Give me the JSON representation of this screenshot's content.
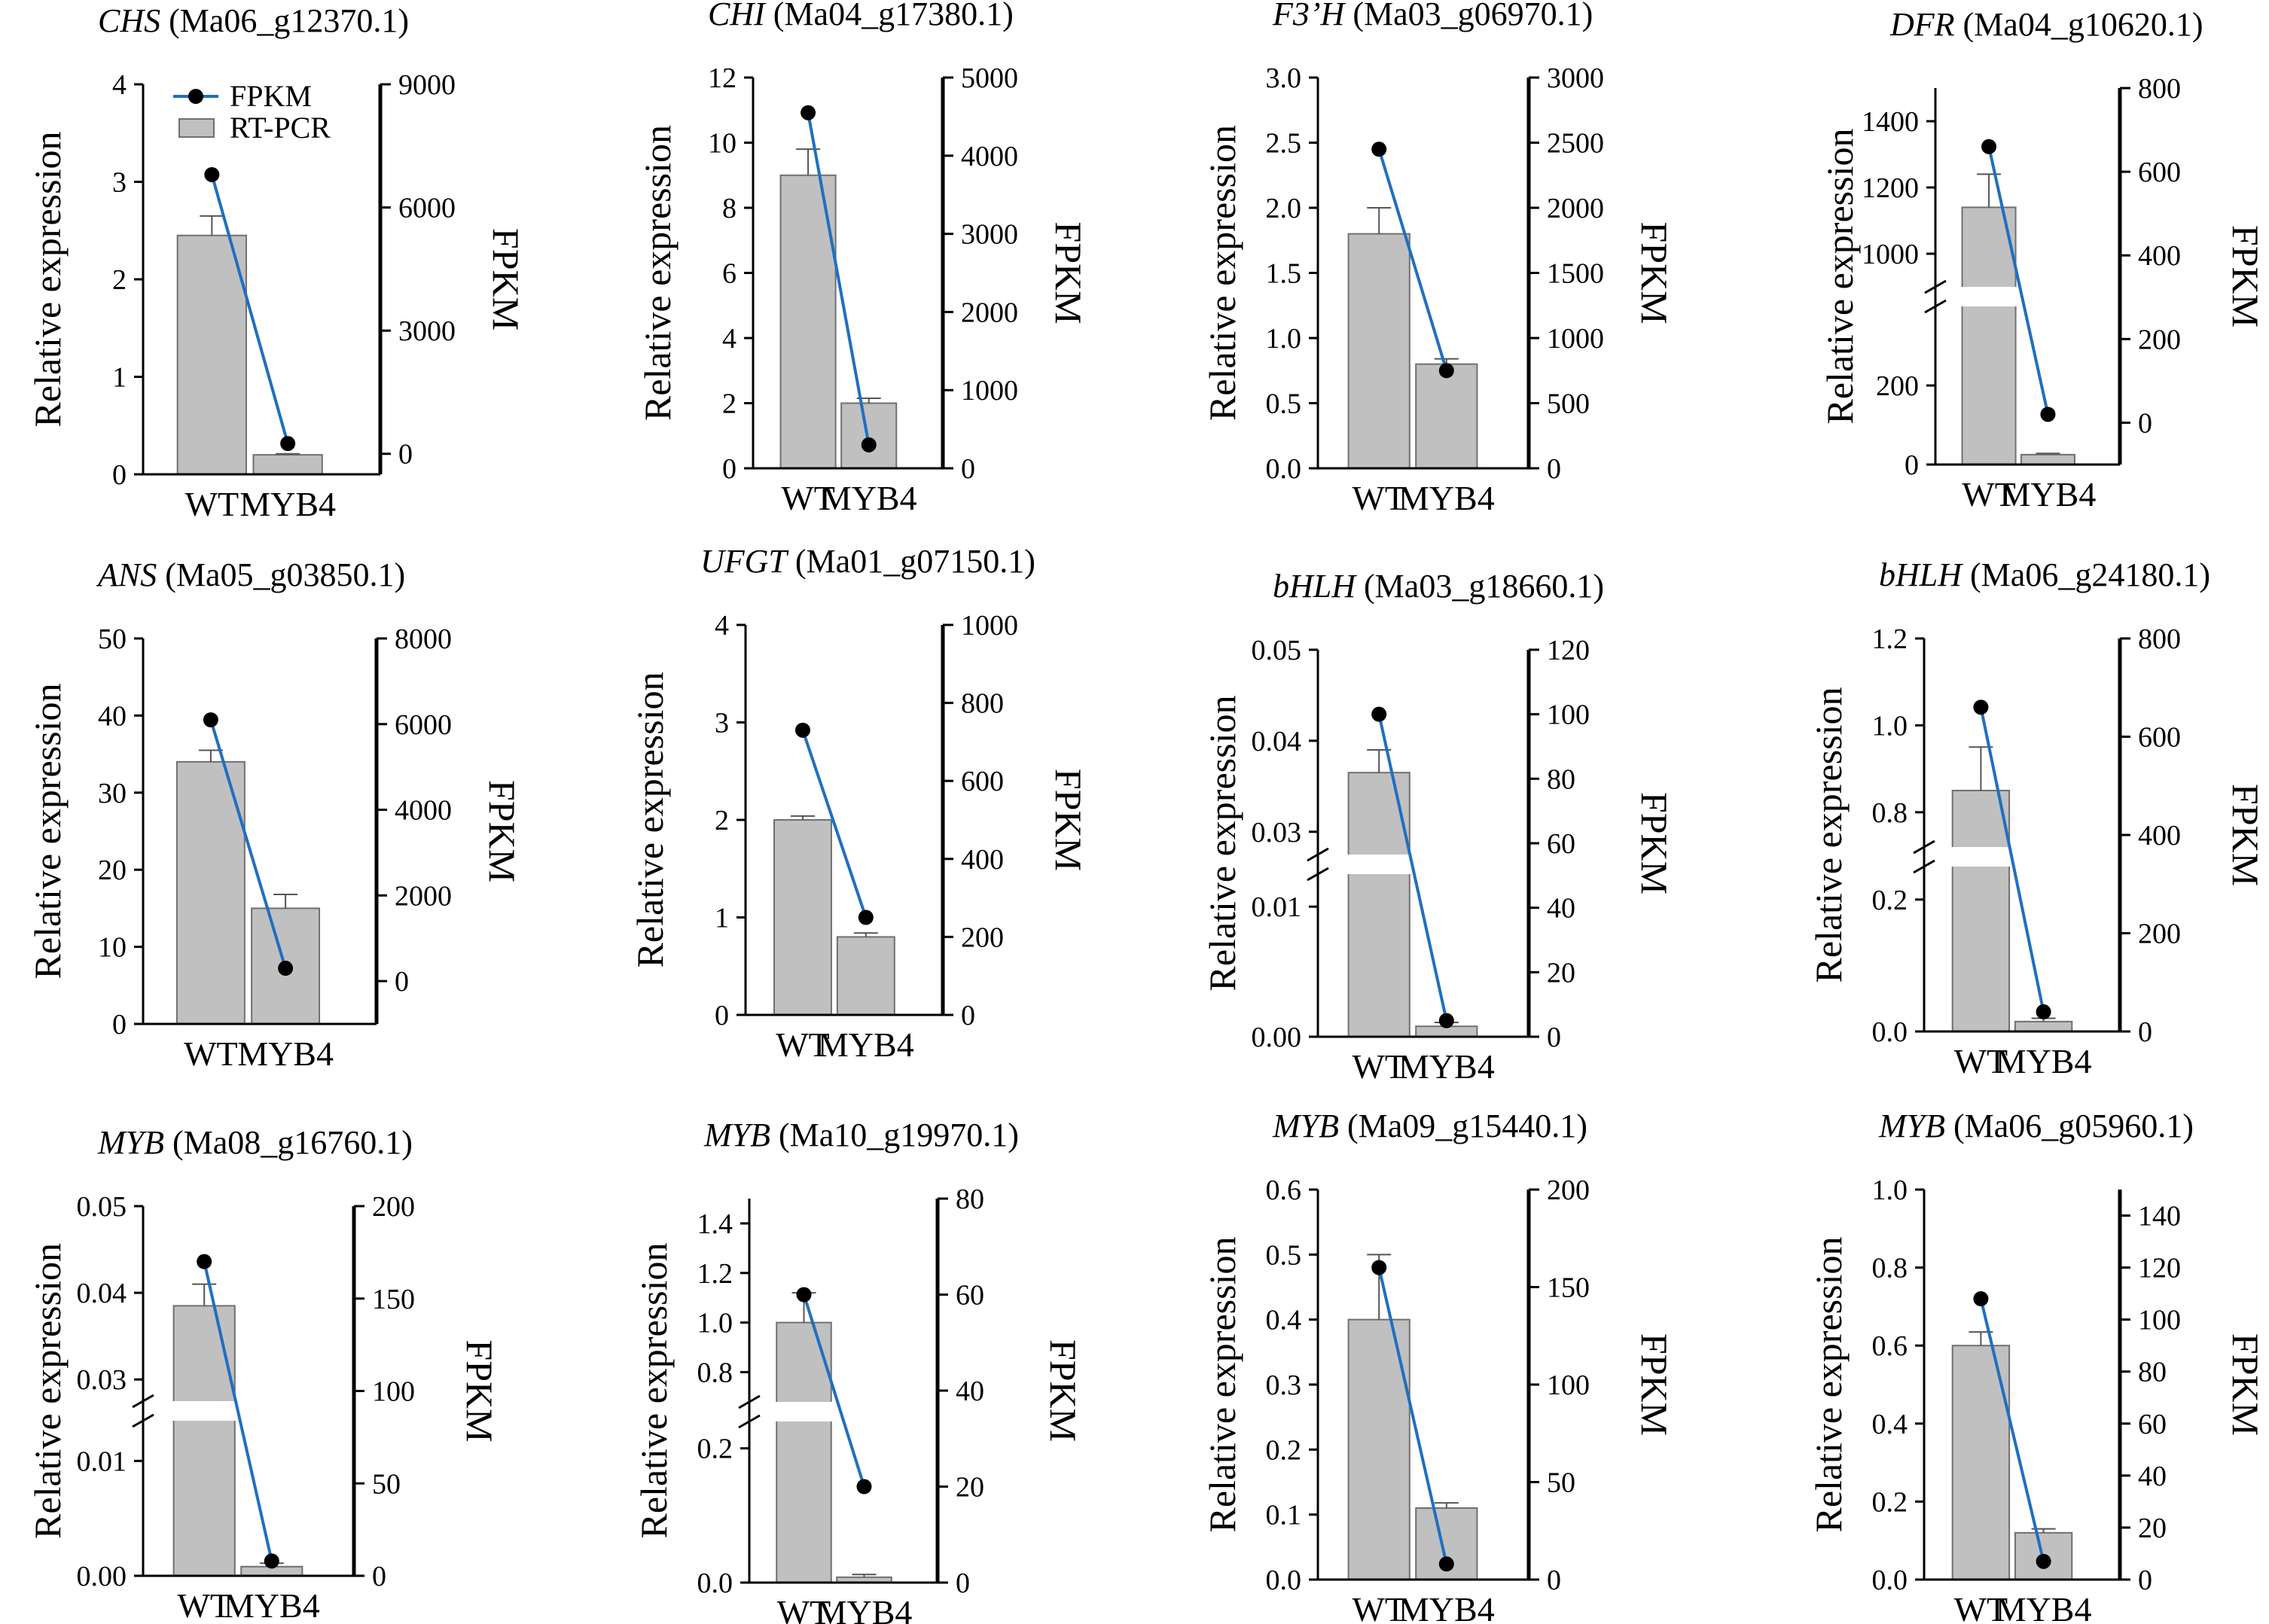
{
  "figure": {
    "legend": {
      "fpkm": "FPKM",
      "rtpcr": "RT-PCR"
    },
    "colors": {
      "bar": "#c0c0c0",
      "bar_edge": "#707070",
      "line": "#1f6fc0",
      "point": "#000000",
      "axis": "#000000"
    }
  },
  "chart_data": [
    {
      "type": "bar",
      "gene": "CHS",
      "id": " (Ma06_g12370.1)",
      "categories": [
        "WT",
        "MYB4"
      ],
      "values": [
        2.45,
        0.2
      ],
      "errors": [
        0.2,
        0.01
      ],
      "fpkm": [
        6800,
        250
      ],
      "ylabel": "Relative expression",
      "y2label": "FPKM",
      "ylim": [
        0,
        4
      ],
      "yticks": [
        0,
        1,
        2,
        3,
        4
      ],
      "ytick_labels": [
        "0",
        "1",
        "2",
        "3",
        "4"
      ],
      "y2lim": [
        -500,
        9000
      ],
      "y2ticks": [
        0,
        3000,
        6000,
        9000
      ],
      "y2tick_labels": [
        "0",
        "3000",
        "6000",
        "9000"
      ],
      "legend": true
    },
    {
      "type": "bar",
      "gene": "CHI",
      "id": " (Ma04_g17380.1)",
      "categories": [
        "WT",
        "MYB4"
      ],
      "values": [
        9,
        2
      ],
      "errors": [
        0.8,
        0.15
      ],
      "fpkm": [
        4550,
        300
      ],
      "ylabel": "Relative expression",
      "y2label": "FPKM",
      "ylim": [
        0,
        12
      ],
      "yticks": [
        0,
        2,
        4,
        6,
        8,
        10,
        12
      ],
      "ytick_labels": [
        "0",
        "2",
        "4",
        "6",
        "8",
        "10",
        "12"
      ],
      "y2lim": [
        0,
        5000
      ],
      "y2ticks": [
        0,
        1000,
        2000,
        3000,
        4000,
        5000
      ],
      "y2tick_labels": [
        "0",
        "1000",
        "2000",
        "3000",
        "4000",
        "5000"
      ]
    },
    {
      "type": "bar",
      "gene": "F3’H",
      "id": " (Ma03_g06970.1)",
      "categories": [
        "WT",
        "MYB4"
      ],
      "values": [
        1.8,
        0.8
      ],
      "errors": [
        0.2,
        0.04
      ],
      "fpkm": [
        2450,
        750
      ],
      "ylabel": "Relative expression",
      "y2label": "FPKM",
      "ylim": [
        0,
        3
      ],
      "yticks": [
        0,
        0.5,
        1,
        1.5,
        2,
        2.5,
        3
      ],
      "ytick_labels": [
        "0.0",
        "0.5",
        "1.0",
        "1.5",
        "2.0",
        "2.5",
        "3.0"
      ],
      "y2lim": [
        0,
        3000
      ],
      "y2ticks": [
        0,
        500,
        1000,
        1500,
        2000,
        2500,
        3000
      ],
      "y2tick_labels": [
        "0",
        "500",
        "1000",
        "1500",
        "2000",
        "2500",
        "3000"
      ]
    },
    {
      "type": "bar",
      "gene": "DFR",
      "id": " (Ma04_g10620.1)",
      "categories": [
        "WT",
        "MYB4"
      ],
      "values": [
        1140,
        25
      ],
      "errors": [
        100,
        3
      ],
      "fpkm": [
        660,
        20
      ],
      "ylabel": "Relative expression",
      "y2label": "FPKM",
      "ylim": [
        0,
        1500
      ],
      "yticks": [
        0,
        200,
        1000,
        1200,
        1400
      ],
      "ytick_labels": [
        "0",
        "200",
        "1000",
        "1200",
        "1400"
      ],
      "y2lim": [
        -100,
        800
      ],
      "y2ticks": [
        0,
        200,
        400,
        600,
        800
      ],
      "y2tick_labels": [
        "0",
        "200",
        "400",
        "600",
        "800"
      ],
      "break": {
        "low": [
          0,
          400
        ],
        "high": [
          900,
          1500
        ]
      }
    },
    {
      "type": "bar",
      "gene": "ANS",
      "id": " (Ma05_g03850.1)",
      "categories": [
        "WT",
        "MYB4"
      ],
      "values": [
        34,
        15
      ],
      "errors": [
        1.5,
        1.8
      ],
      "fpkm": [
        6100,
        300
      ],
      "ylabel": "Relative expression",
      "y2label": "FPKM",
      "ylim": [
        0,
        50
      ],
      "yticks": [
        0,
        10,
        20,
        30,
        40,
        50
      ],
      "ytick_labels": [
        "0",
        "10",
        "20",
        "30",
        "40",
        "50"
      ],
      "y2lim": [
        -1000,
        8000
      ],
      "y2ticks": [
        0,
        2000,
        4000,
        6000,
        8000
      ],
      "y2tick_labels": [
        "0",
        "2000",
        "4000",
        "6000",
        "8000"
      ]
    },
    {
      "type": "bar",
      "gene": "UFGT",
      "id": " (Ma01_g07150.1)",
      "categories": [
        "WT",
        "MYB4"
      ],
      "values": [
        2,
        0.8
      ],
      "errors": [
        0.04,
        0.04
      ],
      "fpkm": [
        730,
        250
      ],
      "ylabel": "Relative expression",
      "y2label": "FPKM",
      "ylim": [
        0,
        4
      ],
      "yticks": [
        0,
        1,
        2,
        3,
        4
      ],
      "ytick_labels": [
        "0",
        "1",
        "2",
        "3",
        "4"
      ],
      "y2lim": [
        0,
        1000
      ],
      "y2ticks": [
        0,
        200,
        400,
        600,
        800,
        1000
      ],
      "y2tick_labels": [
        "0",
        "200",
        "400",
        "600",
        "800",
        "1000"
      ]
    },
    {
      "type": "bar",
      "gene": "bHLH",
      "id": " (Ma03_g18660.1)",
      "categories": [
        "WT",
        "MYB4"
      ],
      "values": [
        0.0365,
        0.0008
      ],
      "errors": [
        0.0025,
        0.0003
      ],
      "fpkm": [
        100,
        5
      ],
      "ylabel": "Relative expression",
      "y2label": "FPKM",
      "ylim": [
        0,
        0.05
      ],
      "yticks": [
        0,
        0.01,
        0.03,
        0.04,
        0.05
      ],
      "ytick_labels": [
        "0.00",
        "0.01",
        "0.03",
        "0.04",
        "0.05"
      ],
      "y2lim": [
        0,
        120
      ],
      "y2ticks": [
        0,
        20,
        40,
        60,
        80,
        100,
        120
      ],
      "y2tick_labels": [
        "0",
        "20",
        "40",
        "60",
        "80",
        "100",
        "120"
      ],
      "break": {
        "low": [
          0,
          0.0125
        ],
        "high": [
          0.0275,
          0.05
        ]
      }
    },
    {
      "type": "bar",
      "gene": "bHLH",
      "id": " (Ma06_g24180.1)",
      "categories": [
        "WT",
        "MYB4"
      ],
      "values": [
        0.85,
        0.015
      ],
      "errors": [
        0.1,
        0.005
      ],
      "fpkm": [
        660,
        40
      ],
      "ylabel": "Relative expression",
      "y2label": "FPKM",
      "ylim": [
        0,
        1.2
      ],
      "yticks": [
        0,
        0.2,
        0.8,
        1.0,
        1.2
      ],
      "ytick_labels": [
        "0.0",
        "0.2",
        "0.8",
        "1.0",
        "1.2"
      ],
      "y2lim": [
        0,
        800
      ],
      "y2ticks": [
        0,
        200,
        400,
        600,
        800
      ],
      "y2tick_labels": [
        "0",
        "200",
        "400",
        "600",
        "800"
      ],
      "break": {
        "low": [
          0,
          0.25
        ],
        "high": [
          0.72,
          1.2
        ]
      }
    },
    {
      "type": "bar",
      "gene": "MYB",
      "id": " (Ma08_g16760.1)",
      "categories": [
        "WT",
        "MYB4"
      ],
      "values": [
        0.0385,
        0.0008
      ],
      "errors": [
        0.0025,
        0.0003
      ],
      "fpkm": [
        170,
        8
      ],
      "ylabel": "Relative expression",
      "y2label": "FPKM",
      "ylim": [
        0,
        0.05
      ],
      "yticks": [
        0,
        0.01,
        0.03,
        0.04,
        0.05
      ],
      "ytick_labels": [
        "0.00",
        "0.01",
        "0.03",
        "0.04",
        "0.05"
      ],
      "y2lim": [
        0,
        200
      ],
      "y2ticks": [
        0,
        50,
        100,
        150,
        200
      ],
      "y2tick_labels": [
        "0",
        "50",
        "100",
        "150",
        "200"
      ],
      "break": {
        "low": [
          0,
          0.0135
        ],
        "high": [
          0.0275,
          0.05
        ]
      }
    },
    {
      "type": "bar",
      "gene": "MYB",
      "id": " (Ma10_g19970.1)",
      "categories": [
        "WT",
        "MYB4"
      ],
      "values": [
        1.0,
        0.008
      ],
      "errors": [
        0.12,
        0.004
      ],
      "fpkm": [
        60,
        20
      ],
      "ylabel": "Relative expression",
      "y2label": "FPKM",
      "ylim": [
        0,
        1.5
      ],
      "yticks": [
        0,
        0.2,
        0.8,
        1.0,
        1.2,
        1.4
      ],
      "ytick_labels": [
        "0.0",
        "0.2",
        "0.8",
        "1.0",
        "1.2",
        "1.4"
      ],
      "y2lim": [
        0,
        80
      ],
      "y2ticks": [
        0,
        20,
        40,
        60,
        80
      ],
      "y2tick_labels": [
        "0",
        "20",
        "40",
        "60",
        "80"
      ],
      "break": {
        "low": [
          0,
          0.24
        ],
        "high": [
          0.68,
          1.5
        ]
      }
    },
    {
      "type": "bar",
      "gene": "MYB",
      "id": " (Ma09_g15440.1)",
      "categories": [
        "WT",
        "MYB4"
      ],
      "values": [
        0.4,
        0.11
      ],
      "errors": [
        0.1,
        0.008
      ],
      "fpkm": [
        160,
        8
      ],
      "ylabel": "Relative expression",
      "y2label": "FPKM",
      "ylim": [
        0,
        0.6
      ],
      "yticks": [
        0,
        0.1,
        0.2,
        0.3,
        0.4,
        0.5,
        0.6
      ],
      "ytick_labels": [
        "0.0",
        "0.1",
        "0.2",
        "0.3",
        "0.4",
        "0.5",
        "0.6"
      ],
      "y2lim": [
        0,
        200
      ],
      "y2ticks": [
        0,
        50,
        100,
        150,
        200
      ],
      "y2tick_labels": [
        "0",
        "50",
        "100",
        "150",
        "200"
      ]
    },
    {
      "type": "bar",
      "gene": "MYB",
      "id": " (Ma06_g05960.1)",
      "categories": [
        "WT",
        "MYB4"
      ],
      "values": [
        0.6,
        0.12
      ],
      "errors": [
        0.035,
        0.01
      ],
      "fpkm": [
        108,
        7
      ],
      "ylabel": "Relative expression",
      "y2label": "FPKM",
      "ylim": [
        0,
        1.0
      ],
      "yticks": [
        0,
        0.2,
        0.4,
        0.6,
        0.8,
        1.0
      ],
      "ytick_labels": [
        "0.0",
        "0.2",
        "0.4",
        "0.6",
        "0.8",
        "1.0"
      ],
      "y2lim": [
        0,
        150
      ],
      "y2ticks": [
        0,
        20,
        40,
        60,
        80,
        100,
        120,
        140
      ],
      "y2tick_labels": [
        "0",
        "20",
        "40",
        "60",
        "80",
        "100",
        "120",
        "140"
      ]
    }
  ]
}
